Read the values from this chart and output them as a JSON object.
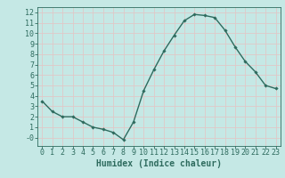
{
  "x": [
    0,
    1,
    2,
    3,
    4,
    5,
    6,
    7,
    8,
    9,
    10,
    11,
    12,
    13,
    14,
    15,
    16,
    17,
    18,
    19,
    20,
    21,
    22,
    23
  ],
  "y": [
    3.5,
    2.5,
    2.0,
    2.0,
    1.5,
    1.0,
    0.8,
    0.5,
    -0.2,
    1.5,
    4.5,
    6.5,
    8.3,
    9.8,
    11.2,
    11.8,
    11.7,
    11.5,
    10.3,
    8.7,
    7.3,
    6.3,
    5.0,
    4.7
  ],
  "line_color": "#2e6b5e",
  "marker": "D",
  "marker_size": 1.8,
  "line_width": 1.0,
  "background_color": "#c5e8e5",
  "grid_color": "#e0c8c8",
  "xlabel": "Humidex (Indice chaleur)",
  "xlim": [
    -0.5,
    23.5
  ],
  "ylim": [
    -0.8,
    12.5
  ],
  "xticks": [
    0,
    1,
    2,
    3,
    4,
    5,
    6,
    7,
    8,
    9,
    10,
    11,
    12,
    13,
    14,
    15,
    16,
    17,
    18,
    19,
    20,
    21,
    22,
    23
  ],
  "yticks": [
    0,
    1,
    2,
    3,
    4,
    5,
    6,
    7,
    8,
    9,
    10,
    11,
    12
  ],
  "ytick_labels": [
    "-0",
    "1",
    "2",
    "3",
    "4",
    "5",
    "6",
    "7",
    "8",
    "9",
    "10",
    "11",
    "12"
  ],
  "tick_color": "#2e6b5e",
  "label_color": "#2e6b5e",
  "xlabel_fontsize": 7,
  "tick_fontsize": 6
}
